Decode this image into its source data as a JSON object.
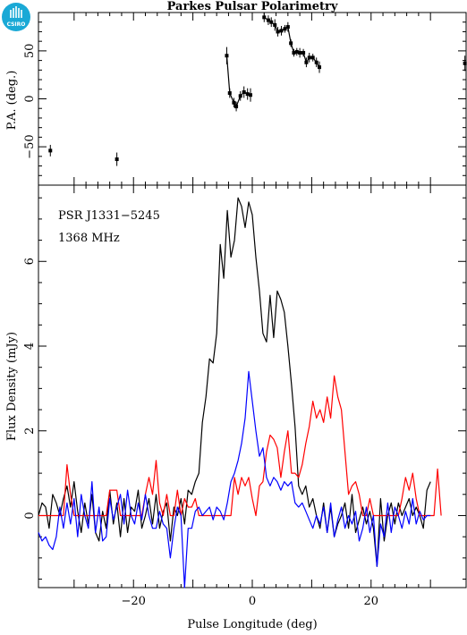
{
  "title": "Parkes Pulsar Polarimetry",
  "logo_text": "CSIRO",
  "chart_data": [
    {
      "type": "scatter",
      "name": "position-angle",
      "ylabel": "P.A. (deg.)",
      "xlim": [
        -36,
        36
      ],
      "ylim": [
        -90,
        90
      ],
      "yticks": [
        -50,
        0,
        50
      ],
      "points": [
        {
          "x": -34.0,
          "y": -54,
          "err": 6
        },
        {
          "x": -22.8,
          "y": -63,
          "err": 7
        },
        {
          "x": -4.3,
          "y": 45,
          "err": 9
        },
        {
          "x": -3.8,
          "y": 6,
          "err": 5
        },
        {
          "x": -3.1,
          "y": -4,
          "err": 5
        },
        {
          "x": -2.7,
          "y": -8,
          "err": 5
        },
        {
          "x": -2.0,
          "y": 3,
          "err": 5
        },
        {
          "x": -1.4,
          "y": 7,
          "err": 6
        },
        {
          "x": -0.8,
          "y": 5,
          "err": 6
        },
        {
          "x": -0.3,
          "y": 4,
          "err": 7
        },
        {
          "x": 2.0,
          "y": 85,
          "err": 5
        },
        {
          "x": 2.7,
          "y": 82,
          "err": 5
        },
        {
          "x": 3.2,
          "y": 80,
          "err": 5
        },
        {
          "x": 3.8,
          "y": 77,
          "err": 6
        },
        {
          "x": 4.3,
          "y": 70,
          "err": 5
        },
        {
          "x": 4.9,
          "y": 71,
          "err": 5
        },
        {
          "x": 5.5,
          "y": 73,
          "err": 4
        },
        {
          "x": 6.0,
          "y": 75,
          "err": 5
        },
        {
          "x": 6.5,
          "y": 58,
          "err": 4
        },
        {
          "x": 7.0,
          "y": 48,
          "err": 4
        },
        {
          "x": 7.5,
          "y": 49,
          "err": 4
        },
        {
          "x": 8.0,
          "y": 48,
          "err": 5
        },
        {
          "x": 8.6,
          "y": 48,
          "err": 4
        },
        {
          "x": 9.1,
          "y": 38,
          "err": 5
        },
        {
          "x": 9.6,
          "y": 43,
          "err": 5
        },
        {
          "x": 10.2,
          "y": 43,
          "err": 4
        },
        {
          "x": 10.8,
          "y": 38,
          "err": 5
        },
        {
          "x": 11.3,
          "y": 33,
          "err": 6
        },
        {
          "x": 35.8,
          "y": 37,
          "err": 8
        }
      ],
      "connected_segments": [
        [
          2,
          9
        ],
        [
          10,
          27
        ]
      ]
    },
    {
      "type": "line",
      "name": "flux-profile",
      "annotations": [
        "PSR J1331−5245",
        "1368 MHz"
      ],
      "xlabel": "Pulse Longitude (deg)",
      "ylabel": "Flux Density (mJy)",
      "xlim": [
        -36,
        36
      ],
      "ylim": [
        -1.7,
        7.8
      ],
      "xticks": [
        -20,
        0,
        20
      ],
      "yticks": [
        0,
        2,
        4,
        6
      ],
      "series": [
        {
          "color": "#000000",
          "x0": -36,
          "dx": 0.6,
          "values": [
            0.0,
            0.3,
            0.2,
            -0.3,
            0.5,
            0.3,
            0.0,
            0.4,
            0.7,
            0.2,
            0.8,
            0.1,
            -0.4,
            0.3,
            -0.2,
            0.5,
            -0.4,
            -0.6,
            0.1,
            -0.3,
            0.6,
            -0.2,
            0.3,
            -0.5,
            0.4,
            -0.4,
            0.2,
            0.1,
            0.6,
            -0.3,
            0.0,
            0.4,
            -0.2,
            0.5,
            -0.3,
            0.1,
            0.3,
            -0.6,
            0.2,
            0.0,
            0.4,
            -0.2,
            0.6,
            0.5,
            0.8,
            1.0,
            2.2,
            2.8,
            3.7,
            3.6,
            4.3,
            6.4,
            5.6,
            7.2,
            6.1,
            6.5,
            7.5,
            7.3,
            6.8,
            7.4,
            7.1,
            6.1,
            5.3,
            4.3,
            4.1,
            5.2,
            4.2,
            5.3,
            5.1,
            4.8,
            4.0,
            3.1,
            2.1,
            0.7,
            0.5,
            0.7,
            0.2,
            0.4,
            0.0,
            -0.3,
            0.3,
            -0.4,
            0.2,
            -0.5,
            -0.2,
            0.0,
            0.3,
            -0.3,
            0.5,
            -0.4,
            -0.1,
            0.2,
            -0.2,
            0.1,
            -0.3,
            -1.2,
            0.4,
            -0.6,
            0.0,
            0.3,
            -0.2,
            0.3,
            0.0,
            0.2,
            0.4,
            0.0,
            0.2,
            0.0,
            -0.3,
            0.6,
            0.8
          ]
        },
        {
          "color": "#ff0000",
          "x0": -36,
          "dx": 0.6,
          "values": [
            0.0,
            0.0,
            0.0,
            0.0,
            0.0,
            0.0,
            0.0,
            0.0,
            1.2,
            0.5,
            0.0,
            0.0,
            0.0,
            0.0,
            0.0,
            0.0,
            0.0,
            0.0,
            0.0,
            0.0,
            0.6,
            0.6,
            0.6,
            0.0,
            0.0,
            0.0,
            0.0,
            0.0,
            0.0,
            0.0,
            0.5,
            0.9,
            0.5,
            1.3,
            0.3,
            0.0,
            0.5,
            0.0,
            0.0,
            0.6,
            0.0,
            0.4,
            0.2,
            0.2,
            0.4,
            0.0,
            0.0,
            0.0,
            0.0,
            0.0,
            0.0,
            0.0,
            0.0,
            0.0,
            0.0,
            0.9,
            0.5,
            0.9,
            0.7,
            0.9,
            0.4,
            0.0,
            0.7,
            0.8,
            1.5,
            1.9,
            1.8,
            1.6,
            0.9,
            1.5,
            2.0,
            1.0,
            1.0,
            0.9,
            1.2,
            1.7,
            2.1,
            2.7,
            2.3,
            2.5,
            2.2,
            2.8,
            2.3,
            3.3,
            2.8,
            2.5,
            1.5,
            0.5,
            0.7,
            0.8,
            0.5,
            0.0,
            0.0,
            0.4,
            0.0,
            0.0,
            0.0,
            0.0,
            0.0,
            0.0,
            0.0,
            0.0,
            0.4,
            0.9,
            0.6,
            1.0,
            0.4,
            0.0,
            0.0,
            0.0,
            0.0,
            0.0,
            1.1,
            0.0
          ]
        },
        {
          "color": "#0000ff",
          "x0": -36,
          "dx": 0.6,
          "values": [
            -0.4,
            -0.6,
            -0.5,
            -0.7,
            -0.8,
            -0.5,
            0.2,
            -0.3,
            0.3,
            -0.2,
            0.4,
            -0.5,
            0.5,
            0.0,
            -0.3,
            0.8,
            -0.4,
            0.2,
            -0.6,
            -0.5,
            0.4,
            -0.1,
            0.2,
            0.5,
            -0.2,
            0.6,
            0.0,
            -0.2,
            0.3,
            -0.1,
            0.5,
            0.0,
            -0.3,
            -0.3,
            0.1,
            -0.2,
            -0.3,
            -1.0,
            -0.3,
            0.2,
            0.0,
            -1.7,
            -0.3,
            -0.3,
            0.1,
            0.2,
            0.0,
            0.1,
            0.2,
            -0.1,
            0.2,
            0.1,
            -0.1,
            0.3,
            0.8,
            1.0,
            1.3,
            1.7,
            2.3,
            3.4,
            2.7,
            2.0,
            1.4,
            1.6,
            0.9,
            0.7,
            0.9,
            0.8,
            0.6,
            0.8,
            0.7,
            0.8,
            0.3,
            0.2,
            0.3,
            0.1,
            -0.1,
            -0.3,
            0.0,
            -0.2,
            0.2,
            -0.4,
            0.3,
            -0.5,
            -0.1,
            0.2,
            -0.3,
            0.0,
            -0.2,
            0.1,
            -0.6,
            -0.3,
            0.2,
            -0.4,
            0.0,
            -1.2,
            -0.2,
            -0.5,
            0.3,
            -0.4,
            0.2,
            0.0,
            -0.3,
            0.1,
            -0.2,
            0.4,
            -0.2,
            0.1,
            -0.1,
            0.0,
            0.0
          ]
        }
      ]
    }
  ]
}
